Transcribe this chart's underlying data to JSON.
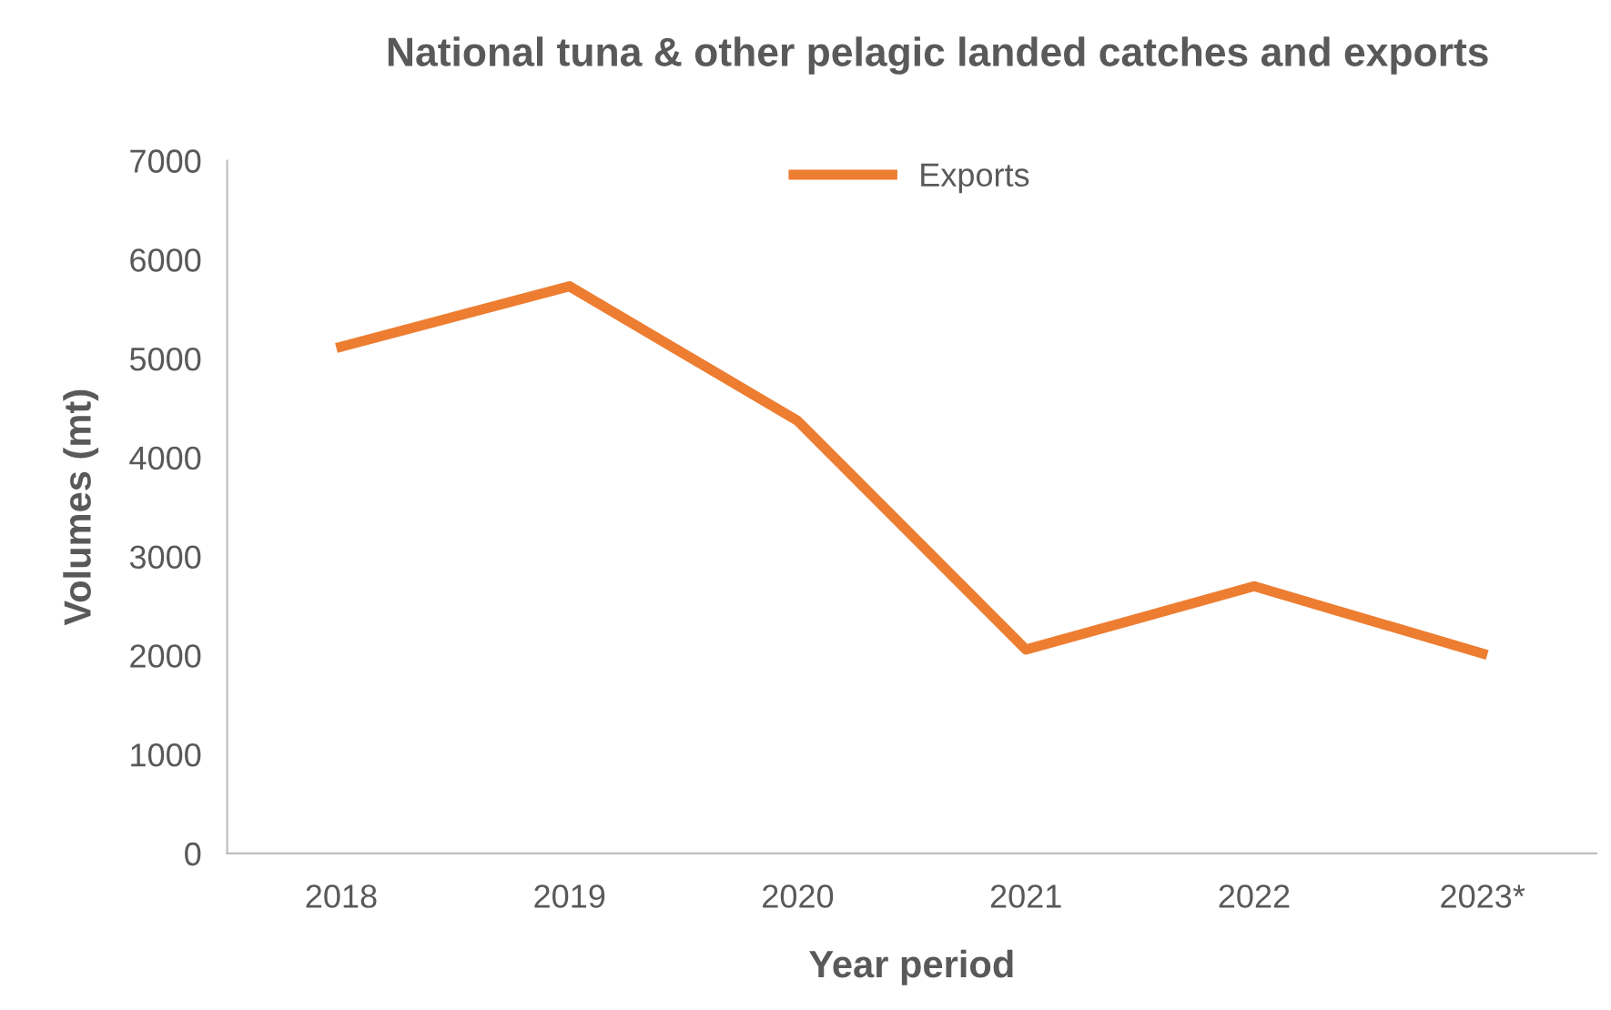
{
  "chart_data": {
    "type": "line",
    "title": "National tuna & other pelagic landed catches and exports",
    "xlabel": "Year period",
    "ylabel": "Volumes (mt)",
    "categories": [
      "2018",
      "2019",
      "2020",
      "2021",
      "2022",
      "2023*"
    ],
    "series": [
      {
        "name": "Exports",
        "color": "#ed7d31",
        "values": [
          5120,
          5730,
          4370,
          2060,
          2700,
          2020
        ]
      }
    ],
    "ylim": [
      0,
      7000
    ],
    "yticks": [
      0,
      1000,
      2000,
      3000,
      4000,
      5000,
      6000,
      7000
    ],
    "grid": false,
    "legend": "top",
    "marker": "none",
    "line_style": "solid"
  }
}
